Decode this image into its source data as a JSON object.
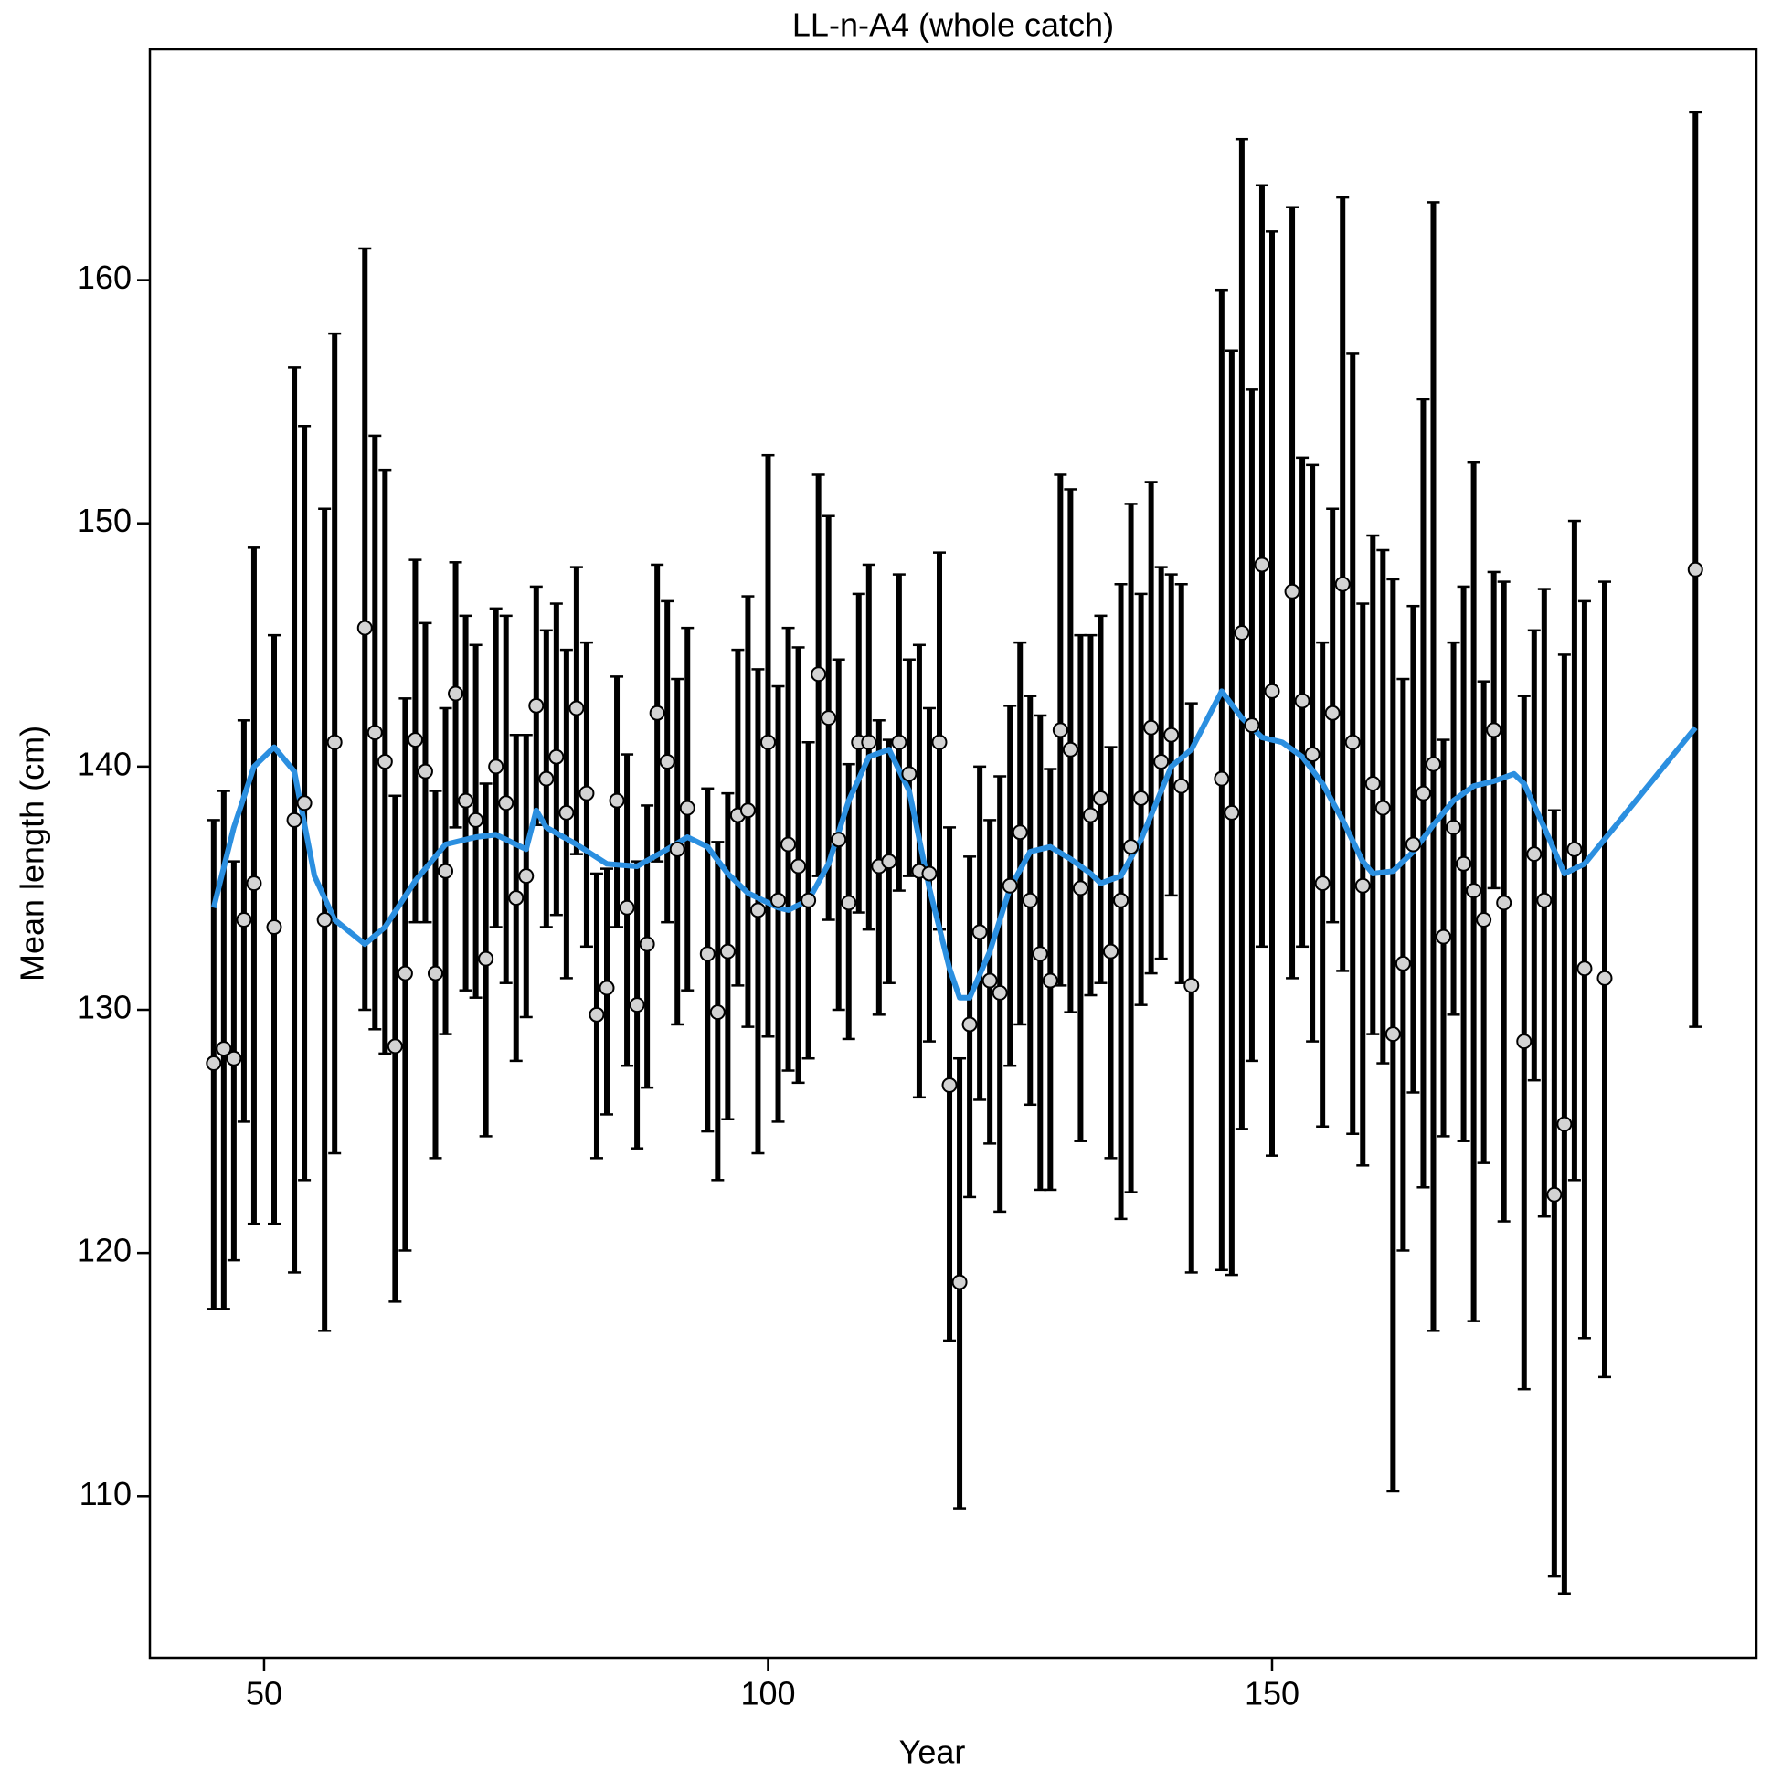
{
  "chart_data": {
    "type": "errorbar",
    "title": "LL-n-A4 (whole catch)",
    "x_label": "Year",
    "y_label": "Mean length (cm)",
    "x": [
      45,
      46,
      47,
      48,
      49,
      51,
      53,
      54,
      56,
      57,
      60,
      61,
      62,
      63,
      64,
      65,
      66,
      67,
      68,
      69,
      70,
      71,
      72,
      73,
      74,
      75,
      76,
      77,
      78,
      79,
      80,
      81,
      82,
      83,
      84,
      85,
      86,
      87,
      88,
      89,
      90,
      91,
      92,
      94,
      95,
      96,
      97,
      98,
      99,
      100,
      101,
      102,
      103,
      104,
      105,
      106,
      107,
      108,
      109,
      110,
      111,
      112,
      113,
      114,
      115,
      116,
      117,
      118,
      119,
      120,
      121,
      122,
      123,
      124,
      125,
      126,
      127,
      128,
      129,
      130,
      131,
      132,
      133,
      134,
      135,
      136,
      137,
      138,
      139,
      140,
      141,
      142,
      145,
      146,
      147,
      148,
      149,
      150,
      152,
      153,
      154,
      155,
      156,
      157,
      158,
      159,
      160,
      161,
      162,
      163,
      164,
      165,
      166,
      167,
      168,
      169,
      170,
      171,
      172,
      173,
      175,
      176,
      177,
      178,
      179,
      180,
      181,
      183,
      192
    ],
    "values": [
      127.8,
      128.4,
      128.0,
      133.7,
      135.2,
      133.4,
      137.8,
      138.5,
      133.7,
      141.0,
      145.7,
      141.4,
      140.2,
      128.5,
      131.5,
      141.1,
      139.8,
      131.5,
      135.7,
      143.0,
      138.6,
      137.8,
      132.1,
      140.0,
      138.5,
      134.6,
      135.5,
      142.5,
      139.5,
      140.4,
      138.1,
      142.4,
      138.9,
      129.8,
      130.9,
      138.6,
      134.2,
      130.2,
      132.7,
      142.2,
      140.2,
      136.6,
      138.3,
      132.3,
      129.9,
      132.4,
      138.0,
      138.2,
      134.1,
      141.0,
      134.5,
      136.8,
      135.9,
      134.5,
      143.8,
      142.0,
      137.0,
      134.4,
      141.0,
      141.0,
      135.9,
      136.1,
      141.0,
      139.7,
      135.7,
      135.6,
      141.0,
      126.9,
      118.8,
      129.4,
      133.2,
      131.2,
      130.7,
      135.1,
      137.3,
      134.5,
      132.3,
      131.2,
      141.5,
      140.7,
      135.0,
      138.0,
      138.7,
      132.4,
      134.5,
      136.7,
      138.7,
      141.6,
      140.2,
      141.3,
      139.2,
      131.0,
      139.5,
      138.1,
      145.5,
      141.7,
      148.3,
      143.1,
      147.2,
      142.7,
      140.5,
      135.2,
      142.2,
      147.5,
      141.0,
      135.1,
      139.3,
      138.3,
      129.0,
      131.9,
      136.8,
      138.9,
      140.1,
      133.0,
      137.5,
      136.0,
      134.9,
      133.7,
      141.5,
      134.4,
      128.7,
      136.4,
      134.5,
      122.4,
      125.3,
      136.6,
      131.7,
      131.3,
      148.1
    ],
    "lower": [
      117.7,
      117.7,
      119.7,
      125.4,
      121.2,
      121.2,
      119.2,
      123.0,
      116.8,
      124.1,
      130.0,
      129.2,
      128.2,
      118.0,
      120.1,
      133.6,
      133.6,
      123.9,
      129.0,
      137.5,
      130.8,
      130.5,
      124.8,
      133.4,
      131.1,
      127.9,
      129.7,
      137.6,
      133.4,
      133.9,
      131.3,
      136.4,
      132.6,
      123.9,
      125.7,
      133.4,
      127.7,
      124.3,
      126.8,
      136.1,
      133.6,
      129.4,
      130.8,
      125.0,
      123.0,
      125.5,
      131.0,
      129.3,
      124.1,
      128.9,
      125.4,
      127.5,
      127.0,
      128.0,
      135.5,
      133.7,
      130.0,
      128.8,
      134.0,
      133.3,
      129.8,
      131.1,
      134.9,
      135.5,
      126.4,
      128.7,
      133.3,
      116.4,
      109.5,
      122.3,
      126.3,
      124.5,
      121.7,
      127.7,
      129.4,
      126.1,
      122.6,
      122.6,
      131.0,
      129.9,
      124.6,
      130.6,
      131.1,
      123.9,
      121.4,
      122.5,
      130.2,
      131.5,
      132.1,
      134.7,
      131.1,
      119.2,
      119.3,
      119.1,
      125.1,
      127.9,
      132.6,
      124.0,
      131.3,
      132.6,
      128.7,
      125.2,
      133.6,
      131.6,
      124.9,
      123.6,
      129.0,
      127.8,
      110.2,
      120.1,
      126.6,
      122.7,
      116.8,
      124.8,
      129.8,
      124.6,
      117.2,
      123.7,
      135.0,
      121.3,
      114.4,
      127.1,
      121.5,
      106.7,
      106.0,
      123.0,
      116.5,
      114.9,
      129.3
    ],
    "upper": [
      137.8,
      139.0,
      136.1,
      141.9,
      149.0,
      145.4,
      156.4,
      154.0,
      150.6,
      157.8,
      161.3,
      153.6,
      152.2,
      138.8,
      142.8,
      148.5,
      145.9,
      139.0,
      142.4,
      148.4,
      146.2,
      145.0,
      139.3,
      146.5,
      146.2,
      141.3,
      141.3,
      147.4,
      145.6,
      146.7,
      144.8,
      148.2,
      145.1,
      135.6,
      135.8,
      143.7,
      140.5,
      136.1,
      138.4,
      148.3,
      146.8,
      143.6,
      145.7,
      139.1,
      136.9,
      138.9,
      144.8,
      147.0,
      144.0,
      152.8,
      143.3,
      145.7,
      144.9,
      141.0,
      152.0,
      150.3,
      144.4,
      140.1,
      147.1,
      148.3,
      141.9,
      141.1,
      147.9,
      144.4,
      145.0,
      142.4,
      148.8,
      137.5,
      128.0,
      136.3,
      140.0,
      137.8,
      139.6,
      142.5,
      145.1,
      142.9,
      142.1,
      139.9,
      152.0,
      151.4,
      145.4,
      145.4,
      146.2,
      140.8,
      147.5,
      150.8,
      147.1,
      151.7,
      148.2,
      147.9,
      147.5,
      142.6,
      159.6,
      157.1,
      165.8,
      155.5,
      163.9,
      162.0,
      163.0,
      152.7,
      152.4,
      145.1,
      150.6,
      163.4,
      157.0,
      146.7,
      149.5,
      148.9,
      147.7,
      143.6,
      146.6,
      155.1,
      163.2,
      141.1,
      145.1,
      147.4,
      152.5,
      143.5,
      148.0,
      147.6,
      142.9,
      145.6,
      147.3,
      138.2,
      144.6,
      150.1,
      146.8,
      147.6,
      166.9
    ],
    "point_color": "#d3d3d3",
    "bar_color": "#000000",
    "smooth": {
      "color": "#2b8fe0",
      "x": [
        45,
        47,
        49,
        51,
        53,
        55,
        57,
        60,
        62,
        65,
        68,
        71,
        73,
        76,
        77,
        78,
        81,
        84,
        87,
        90,
        92,
        94,
        96,
        98,
        101,
        102,
        104,
        106,
        108,
        110,
        112,
        114,
        116,
        118,
        119,
        120,
        122,
        124,
        126,
        128,
        130,
        132,
        133,
        135,
        137,
        139,
        140,
        142,
        144,
        145,
        147,
        149,
        151,
        153,
        155,
        157,
        159,
        160,
        162,
        164,
        166,
        168,
        170,
        172,
        174,
        175,
        177,
        179,
        181,
        192
      ],
      "values": [
        134.2,
        137.5,
        140.0,
        140.8,
        139.8,
        135.5,
        133.7,
        132.7,
        133.4,
        135.3,
        136.8,
        137.1,
        137.2,
        136.6,
        138.2,
        137.5,
        136.8,
        136.0,
        135.9,
        136.6,
        137.1,
        136.7,
        135.6,
        134.8,
        134.2,
        134.1,
        134.5,
        136.0,
        138.6,
        140.4,
        140.7,
        139.0,
        135.0,
        131.7,
        130.5,
        130.5,
        132.4,
        135.0,
        136.5,
        136.7,
        136.2,
        135.6,
        135.2,
        135.5,
        137.0,
        139.0,
        140.0,
        140.7,
        142.3,
        143.1,
        142.0,
        141.2,
        141.0,
        140.4,
        139.3,
        137.8,
        136.1,
        135.6,
        135.7,
        136.5,
        137.6,
        138.6,
        139.2,
        139.4,
        139.7,
        139.3,
        137.5,
        135.6,
        136.0,
        141.6
      ]
    },
    "xlim": [
      38.67,
      198.05
    ],
    "ylim": [
      103.36,
      169.49
    ],
    "xticks": [
      50,
      100,
      150
    ],
    "yticks": [
      110,
      120,
      130,
      140,
      150,
      160
    ]
  }
}
